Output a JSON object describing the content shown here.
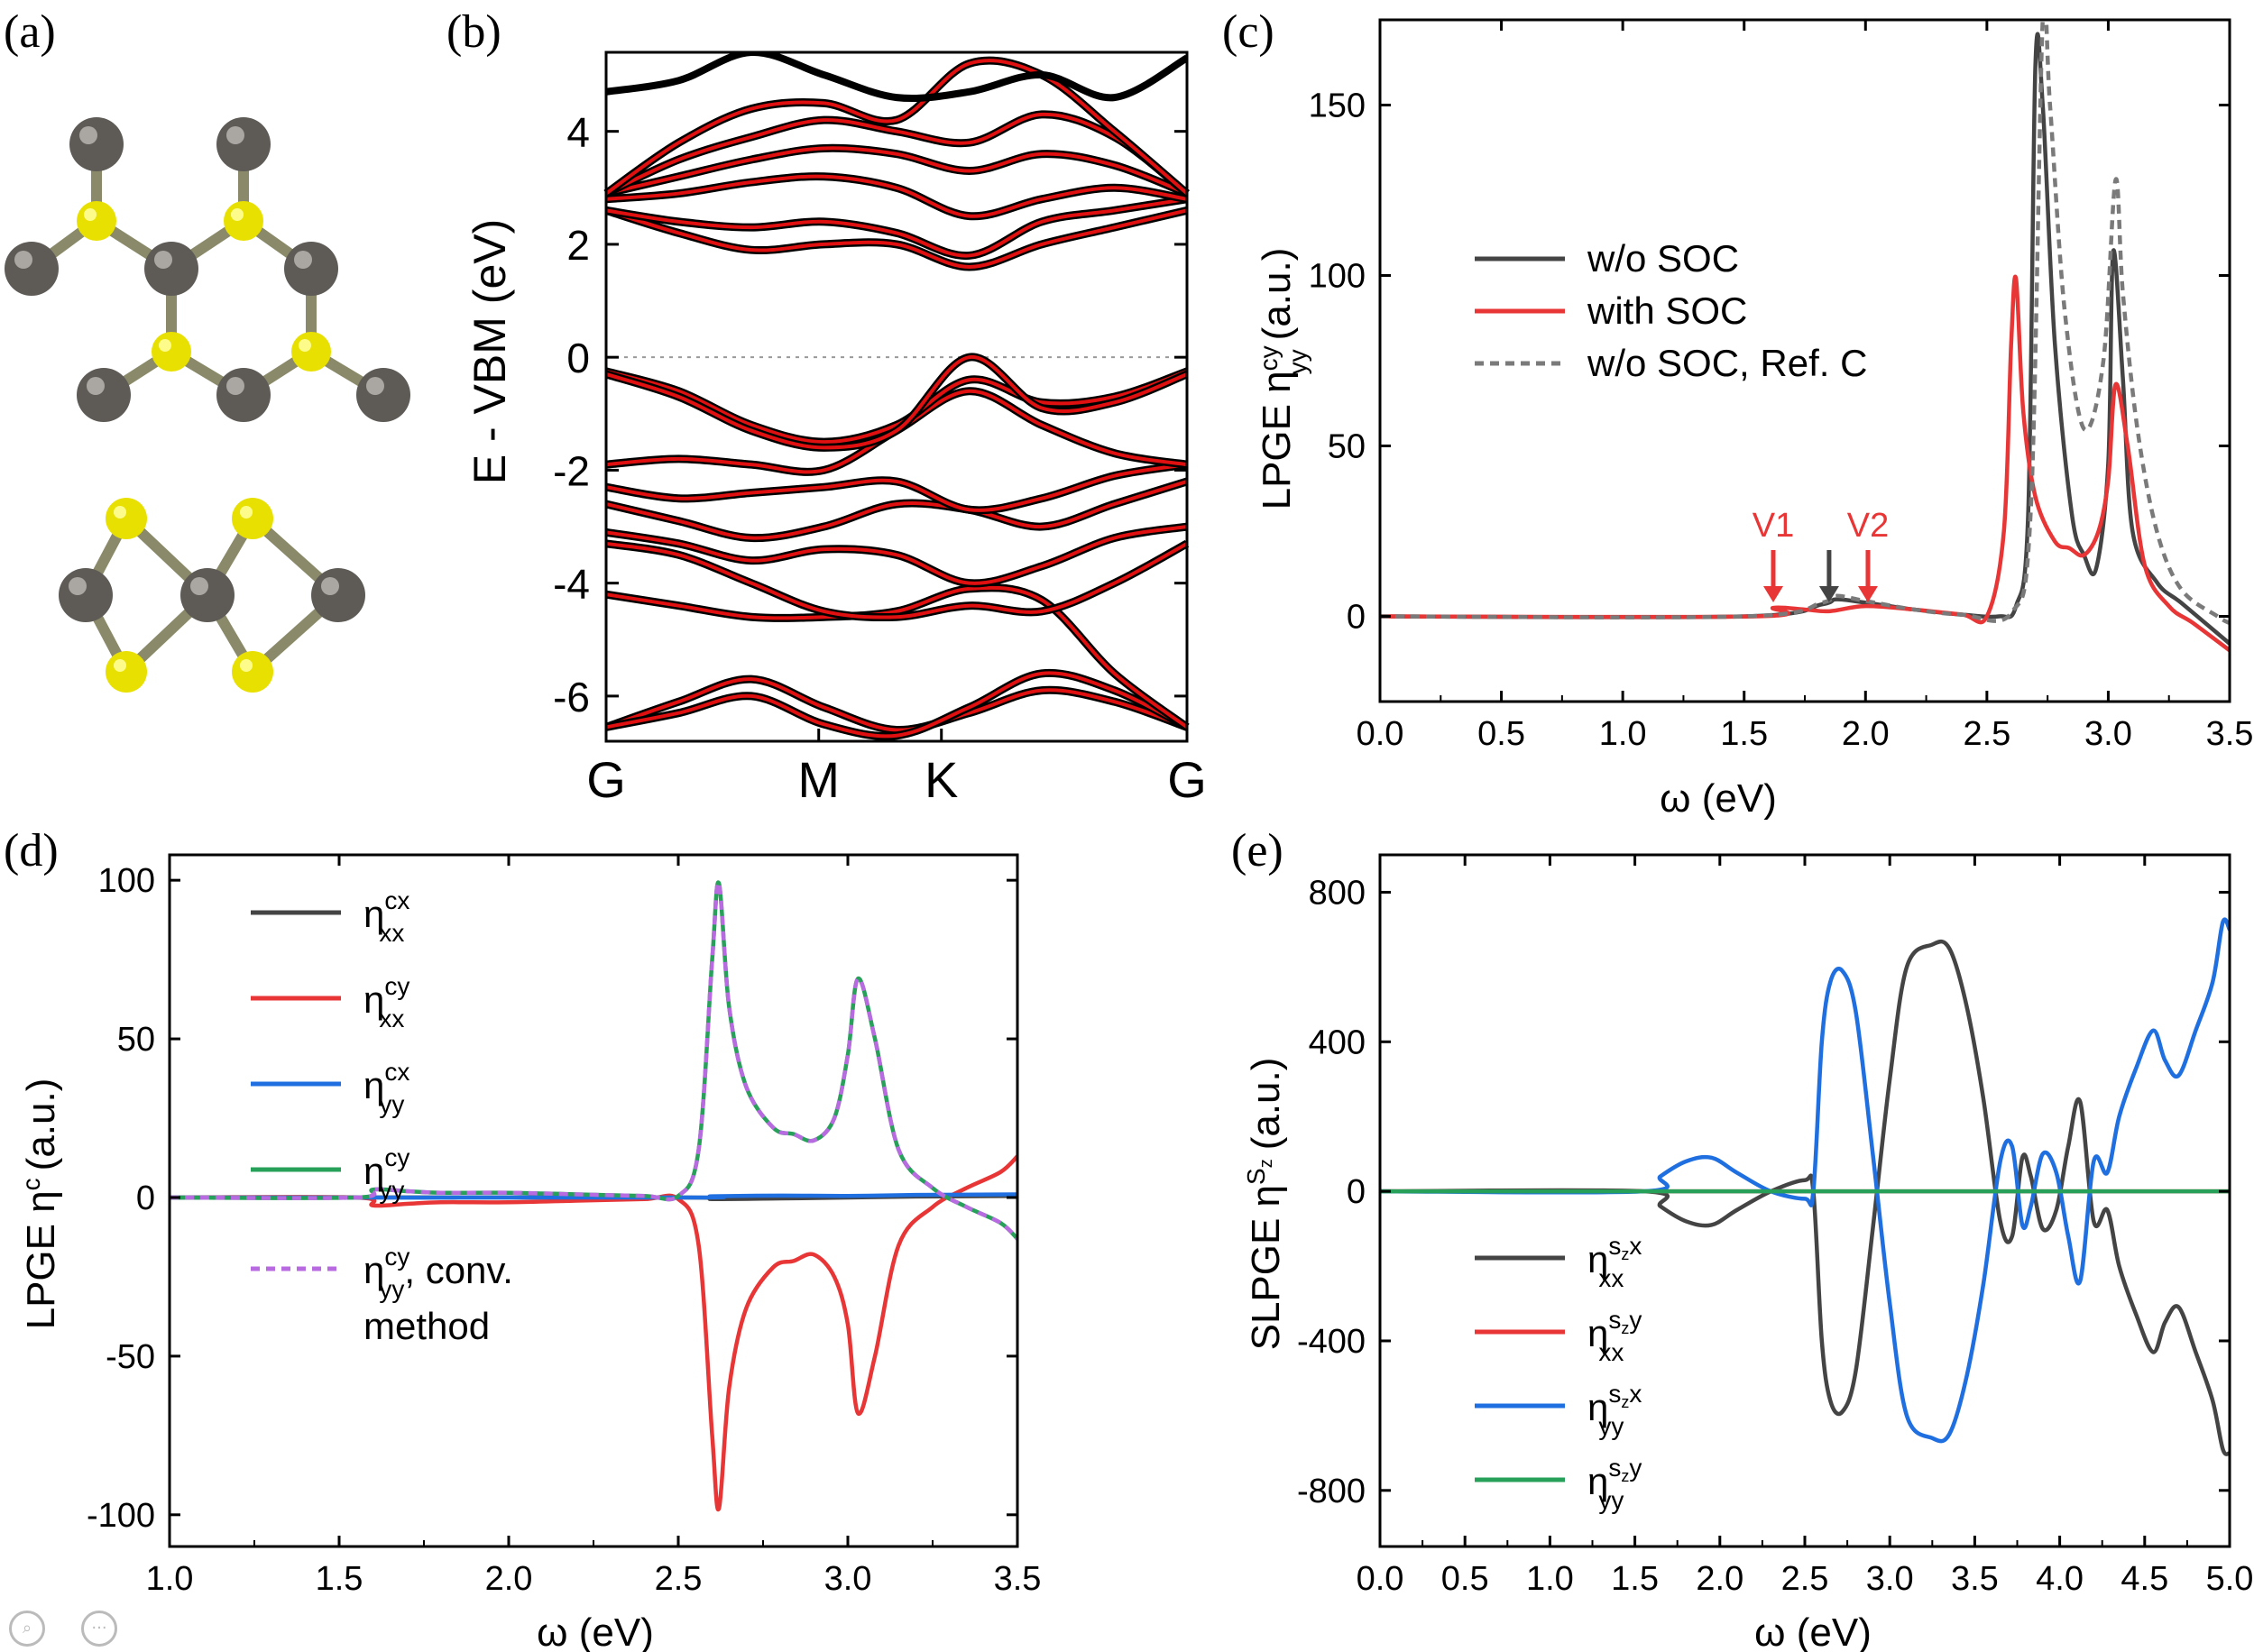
{
  "panels": {
    "a": {
      "letter": "(a)"
    },
    "b": {
      "letter": "(b)"
    },
    "c": {
      "letter": "(c)"
    },
    "d": {
      "letter": "(d)"
    },
    "e": {
      "letter": "(e)"
    }
  },
  "colors": {
    "black_curve": "#444444",
    "red_curve": "#e83535",
    "blue_curve": "#1f6fe0",
    "green_curve": "#27a05a",
    "violet_dash": "#b86be0",
    "gray_dash": "#7a7a7a",
    "atom_gray": "#5e5b57",
    "atom_yellow": "#e8e000",
    "band_black": "#000000",
    "band_red": "#e01010"
  },
  "structure": {
    "atoms": [
      "carbon-gray",
      "sulfur-yellow"
    ]
  },
  "ui": {
    "zoom_icons": [
      "zoom-icon",
      "more-icon"
    ]
  },
  "chart_data": [
    {
      "id": "b",
      "type": "line",
      "title": "",
      "ylabel": "E - VBM (eV)",
      "xlabel": "",
      "ylim": [
        -6.8,
        5.4
      ],
      "yticks": [
        4,
        2,
        0,
        -2,
        -4,
        -6
      ],
      "kpath_labels": [
        "G",
        "M",
        "K",
        "G"
      ],
      "kpath_positions": [
        0,
        1,
        1.577,
        2.732
      ],
      "fermi_level": 0,
      "series_note": "black: w/o SOC, red: with SOC",
      "bands": [
        [
          -6.55,
          -6.1,
          -5.7,
          -6.2,
          -6.6,
          -6.3,
          -5.9,
          -6.1,
          -6.55
        ],
        [
          -6.55,
          -6.3,
          -6.0,
          -6.5,
          -6.7,
          -6.2,
          -5.6,
          -5.9,
          -6.55
        ],
        [
          -4.2,
          -4.4,
          -4.6,
          -4.6,
          -4.5,
          -4.1,
          -4.3,
          -5.6,
          -6.55
        ],
        [
          -3.3,
          -3.5,
          -4.0,
          -4.5,
          -4.6,
          -4.4,
          -4.5,
          -4.0,
          -3.3
        ],
        [
          -3.1,
          -3.3,
          -3.6,
          -3.4,
          -3.5,
          -4.0,
          -3.7,
          -3.2,
          -3.0
        ],
        [
          -2.6,
          -2.9,
          -3.2,
          -3.0,
          -2.6,
          -2.7,
          -3.0,
          -2.6,
          -2.2
        ],
        [
          -2.3,
          -2.5,
          -2.4,
          -2.3,
          -2.2,
          -2.7,
          -2.5,
          -2.1,
          -1.9
        ],
        [
          -1.9,
          -1.8,
          -1.9,
          -2.0,
          -1.3,
          -0.6,
          -1.2,
          -1.7,
          -1.9
        ],
        [
          -0.25,
          -0.6,
          -1.2,
          -1.5,
          -1.2,
          -0.4,
          -0.8,
          -0.7,
          -0.25
        ],
        [
          -0.3,
          -0.7,
          -1.3,
          -1.6,
          -1.3,
          0.0,
          -0.9,
          -0.8,
          -0.3
        ],
        [
          2.6,
          2.2,
          1.9,
          2.0,
          2.0,
          1.6,
          2.0,
          2.3,
          2.6
        ],
        [
          2.6,
          2.4,
          2.3,
          2.4,
          2.2,
          1.8,
          2.4,
          2.6,
          2.8
        ],
        [
          2.8,
          2.9,
          3.1,
          3.2,
          3.0,
          2.5,
          2.8,
          3.0,
          2.8
        ],
        [
          2.9,
          3.2,
          3.5,
          3.7,
          3.6,
          3.3,
          3.6,
          3.4,
          2.9
        ],
        [
          2.9,
          3.5,
          3.9,
          4.2,
          4.0,
          3.8,
          4.3,
          3.9,
          2.9
        ],
        [
          2.9,
          3.8,
          4.4,
          4.5,
          4.2,
          5.2,
          5.0,
          4.0,
          2.9
        ]
      ],
      "upper_band": [
        4.7,
        4.9,
        5.4,
        5.0,
        4.6,
        4.7,
        5.0,
        4.6,
        5.3
      ]
    },
    {
      "id": "c",
      "type": "line",
      "title": "",
      "xlabel": "ω (eV)",
      "ylabel": "LPGE η",
      "ylabel_sup": "cy",
      "ylabel_sub": "yy",
      "ylabel_unit": "(a.u.)",
      "xlim": [
        0,
        3.5
      ],
      "ylim": [
        -25,
        175
      ],
      "xticks": [
        0.0,
        0.5,
        1.0,
        1.5,
        2.0,
        2.5,
        3.0,
        3.5
      ],
      "yticks": [
        0,
        50,
        100,
        150
      ],
      "legend": [
        "w/o SOC",
        "with SOC",
        "w/o SOC, Ref. C"
      ],
      "annotations": [
        {
          "text": "V1",
          "x": 1.62,
          "y": 5,
          "color": "red"
        },
        {
          "text": "",
          "x": 1.85,
          "y": 7,
          "color": "black"
        },
        {
          "text": "V2",
          "x": 2.01,
          "y": 5,
          "color": "red"
        }
      ],
      "series": [
        {
          "name": "w/o SOC",
          "color": "black",
          "dash": false,
          "x": [
            0,
            1.5,
            1.82,
            1.88,
            2.0,
            2.2,
            2.4,
            2.55,
            2.62,
            2.67,
            2.7,
            2.73,
            2.78,
            2.85,
            2.9,
            2.95,
            3.0,
            3.02,
            3.06,
            3.1,
            3.2,
            3.3,
            3.45,
            3.5
          ],
          "y": [
            0,
            0,
            3.5,
            5,
            4,
            2,
            0.5,
            0,
            3,
            30,
            162,
            150,
            80,
            30,
            18,
            14,
            45,
            107,
            70,
            25,
            10,
            4,
            -5,
            -8
          ]
        },
        {
          "name": "with SOC",
          "color": "red",
          "dash": false,
          "x": [
            0,
            1.55,
            1.62,
            1.75,
            1.85,
            2.0,
            2.2,
            2.4,
            2.5,
            2.57,
            2.6,
            2.62,
            2.65,
            2.7,
            2.78,
            2.84,
            2.9,
            2.96,
            3.0,
            3.03,
            3.08,
            3.15,
            3.25,
            3.35,
            3.5
          ],
          "y": [
            0,
            0,
            2.5,
            2,
            1.5,
            3,
            2,
            0.5,
            0,
            25,
            80,
            99,
            60,
            35,
            22,
            20,
            18,
            25,
            40,
            68,
            50,
            15,
            3,
            -2,
            -10
          ]
        },
        {
          "name": "w/o SOC, Ref. C",
          "color": "gray",
          "dash": true,
          "x": [
            0,
            1.5,
            1.82,
            1.88,
            2.0,
            2.2,
            2.4,
            2.6,
            2.68,
            2.73,
            2.76,
            2.82,
            2.9,
            2.98,
            3.03,
            3.06,
            3.12,
            3.2,
            3.3,
            3.45,
            3.5
          ],
          "y": [
            0,
            0,
            4,
            6,
            4.5,
            2,
            0.5,
            1,
            30,
            175,
            150,
            90,
            55,
            75,
            128,
            95,
            55,
            25,
            8,
            0,
            -2
          ]
        }
      ]
    },
    {
      "id": "d",
      "type": "line",
      "title": "",
      "xlabel": "ω (eV)",
      "ylabel": "LPGE η",
      "ylabel_sup": "c",
      "ylabel_unit": "(a.u.)",
      "xlim": [
        1.0,
        3.5
      ],
      "ylim": [
        -110,
        108
      ],
      "xticks": [
        1.0,
        1.5,
        2.0,
        2.5,
        3.0,
        3.5
      ],
      "yticks": [
        100,
        50,
        0,
        -50,
        -100
      ],
      "legend": [
        {
          "sym": "η",
          "sup": "cx",
          "sub": "xx"
        },
        {
          "sym": "η",
          "sup": "cy",
          "sub": "xx"
        },
        {
          "sym": "η",
          "sup": "cx",
          "sub": "yy"
        },
        {
          "sym": "η",
          "sup": "cy",
          "sub": "yy"
        },
        {
          "sym": "η",
          "sup": "cy",
          "sub": "yy",
          "suffix": ", conv.",
          "line2": "method"
        }
      ],
      "series": [
        {
          "name": "η^cx_xx",
          "color": "black",
          "dash": false,
          "x": [
            1.0,
            2.5,
            2.6,
            2.8,
            3.0,
            3.2,
            3.5
          ],
          "y": [
            0,
            0,
            -0.5,
            -0.3,
            0,
            0.3,
            0.5
          ]
        },
        {
          "name": "η^cy_xx",
          "color": "red",
          "dash": false,
          "x": [
            1.0,
            1.55,
            1.6,
            1.7,
            1.8,
            2.0,
            2.2,
            2.4,
            2.5,
            2.56,
            2.6,
            2.62,
            2.65,
            2.7,
            2.78,
            2.84,
            2.9,
            2.96,
            3.0,
            3.03,
            3.08,
            3.15,
            3.25,
            3.35,
            3.45,
            3.5
          ],
          "y": [
            0,
            0,
            -2.5,
            -2,
            -1.5,
            -1.5,
            -1,
            -0.5,
            -0.5,
            -15,
            -75,
            -98,
            -60,
            -35,
            -22,
            -20,
            -18,
            -25,
            -40,
            -68,
            -50,
            -15,
            -3,
            3,
            8,
            13
          ]
        },
        {
          "name": "η^cx_yy",
          "color": "blue",
          "dash": false,
          "x": [
            1.0,
            2.5,
            2.6,
            2.8,
            3.0,
            3.2,
            3.5
          ],
          "y": [
            0,
            0,
            0.4,
            0.6,
            0.5,
            0.8,
            1.0
          ]
        },
        {
          "name": "η^cy_yy",
          "color": "green",
          "dash": false,
          "x": [
            1.0,
            1.55,
            1.6,
            1.7,
            1.8,
            2.0,
            2.2,
            2.4,
            2.5,
            2.56,
            2.6,
            2.62,
            2.65,
            2.7,
            2.78,
            2.84,
            2.9,
            2.96,
            3.0,
            3.03,
            3.08,
            3.15,
            3.25,
            3.35,
            3.45,
            3.5
          ],
          "y": [
            0,
            0,
            2.5,
            2,
            1.5,
            1.5,
            1,
            0.5,
            0.5,
            15,
            75,
            99,
            60,
            35,
            22,
            20,
            18,
            25,
            45,
            69,
            50,
            15,
            3,
            -3,
            -8,
            -13
          ]
        },
        {
          "name": "η^cy_yy, conv. method",
          "color": "violet",
          "dash": true,
          "x": [
            1.0,
            1.55,
            1.6,
            1.7,
            1.8,
            2.0,
            2.2,
            2.4,
            2.5,
            2.56,
            2.6,
            2.62,
            2.65,
            2.7,
            2.78,
            2.84,
            2.9,
            2.96,
            3.0,
            3.03,
            3.08,
            3.15,
            3.25,
            3.35,
            3.45,
            3.5
          ],
          "y": [
            0,
            0,
            2.5,
            2,
            1.5,
            1.5,
            1,
            0.5,
            0.5,
            15,
            75,
            99,
            60,
            35,
            22,
            20,
            18,
            25,
            45,
            69,
            50,
            15,
            3,
            -3,
            -8,
            -13
          ]
        }
      ]
    },
    {
      "id": "e",
      "type": "line",
      "title": "",
      "xlabel": "ω (eV)",
      "ylabel": "SLPGE η",
      "ylabel_sup": "S",
      "ylabel_supsub": "z",
      "ylabel_unit": "(a.u.)",
      "xlim": [
        0,
        5.0
      ],
      "ylim": [
        -950,
        900
      ],
      "xticks": [
        0.0,
        0.5,
        1.0,
        1.5,
        2.0,
        2.5,
        3.0,
        3.5,
        4.0,
        4.5,
        5.0
      ],
      "yticks": [
        800,
        400,
        0,
        -400,
        -800
      ],
      "legend": [
        {
          "sym": "η",
          "sup": "s",
          "supsub": "z",
          "supend": "x",
          "sub": "xx"
        },
        {
          "sym": "η",
          "sup": "s",
          "supsub": "z",
          "supend": "y",
          "sub": "xx"
        },
        {
          "sym": "η",
          "sup": "s",
          "supsub": "z",
          "supend": "x",
          "sub": "yy"
        },
        {
          "sym": "η",
          "sup": "s",
          "supsub": "z",
          "supend": "y",
          "sub": "yy"
        }
      ],
      "series": [
        {
          "name": "η^szx_xx",
          "color": "black",
          "dash": false,
          "x": [
            0,
            1.55,
            1.65,
            1.8,
            1.95,
            2.1,
            2.3,
            2.5,
            2.55,
            2.6,
            2.65,
            2.72,
            2.8,
            2.9,
            3.0,
            3.1,
            3.25,
            3.35,
            3.45,
            3.55,
            3.65,
            3.72,
            3.78,
            3.83,
            3.9,
            3.98,
            4.05,
            4.12,
            4.2,
            4.28,
            4.35,
            4.45,
            4.55,
            4.62,
            4.7,
            4.8,
            4.9,
            4.96,
            5.0
          ],
          "y": [
            0,
            0,
            -40,
            -80,
            -90,
            -50,
            0,
            30,
            0,
            -400,
            -560,
            -590,
            -480,
            -100,
            300,
            600,
            660,
            650,
            500,
            250,
            -80,
            -120,
            90,
            40,
            -100,
            -50,
            120,
            240,
            -80,
            -50,
            -200,
            -330,
            -430,
            -350,
            -310,
            -430,
            -560,
            -690,
            -700
          ]
        },
        {
          "name": "η^szy_xx",
          "color": "red",
          "dash": false,
          "x": [
            0,
            5.0
          ],
          "y": [
            0,
            0
          ]
        },
        {
          "name": "η^szx_yy",
          "color": "blue",
          "dash": false,
          "x": [
            0,
            1.55,
            1.65,
            1.8,
            1.95,
            2.1,
            2.3,
            2.5,
            2.55,
            2.6,
            2.65,
            2.72,
            2.8,
            2.9,
            3.0,
            3.1,
            3.25,
            3.35,
            3.45,
            3.55,
            3.65,
            3.72,
            3.78,
            3.83,
            3.9,
            3.98,
            4.05,
            4.12,
            4.2,
            4.28,
            4.35,
            4.45,
            4.55,
            4.62,
            4.7,
            4.8,
            4.9,
            4.96,
            5.0
          ],
          "y": [
            0,
            0,
            40,
            80,
            90,
            50,
            0,
            -20,
            0,
            400,
            560,
            590,
            480,
            100,
            -300,
            -600,
            -660,
            -650,
            -500,
            -250,
            80,
            120,
            -90,
            -40,
            100,
            50,
            -120,
            -240,
            80,
            50,
            200,
            330,
            430,
            350,
            310,
            430,
            560,
            720,
            700
          ]
        },
        {
          "name": "η^szy_yy",
          "color": "green",
          "dash": false,
          "x": [
            0,
            5.0
          ],
          "y": [
            0,
            0
          ]
        }
      ]
    }
  ]
}
